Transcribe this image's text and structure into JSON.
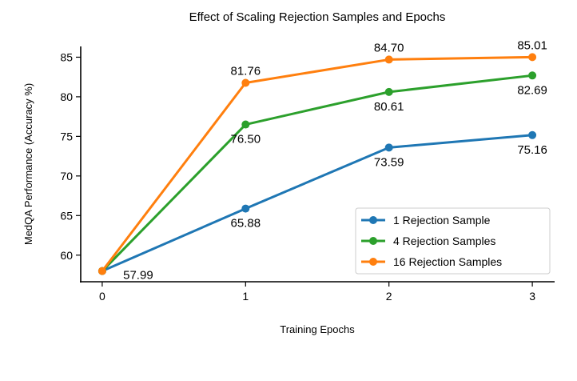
{
  "chart_data": {
    "type": "line",
    "title": "Effect of Scaling Rejection Samples and Epochs",
    "xlabel": "Training Epochs",
    "ylabel": "MedQA Performance (Accuracy %)",
    "x": [
      0,
      1,
      2,
      3
    ],
    "xticks": [
      "0",
      "1",
      "2",
      "3"
    ],
    "yticks": [
      "60",
      "65",
      "70",
      "75",
      "80",
      "85"
    ],
    "xlim": [
      -0.15,
      3.15
    ],
    "ylim": [
      56.64,
      86.36
    ],
    "grid": false,
    "legend_position": "lower-right",
    "series": [
      {
        "name": "1 Rejection Sample",
        "color": "#1f77b4",
        "values": [
          57.99,
          65.88,
          73.59,
          75.16
        ],
        "labels": [
          "57.99",
          "65.88",
          "73.59",
          "75.16"
        ]
      },
      {
        "name": "4 Rejection Samples",
        "color": "#2ca02c",
        "values": [
          57.99,
          76.5,
          80.61,
          82.69
        ],
        "labels": [
          "",
          "76.50",
          "80.61",
          "82.69"
        ]
      },
      {
        "name": "16 Rejection Samples",
        "color": "#ff7f0e",
        "values": [
          57.99,
          81.76,
          84.7,
          85.01
        ],
        "labels": [
          "",
          "81.76",
          "84.70",
          "85.01"
        ]
      }
    ]
  }
}
